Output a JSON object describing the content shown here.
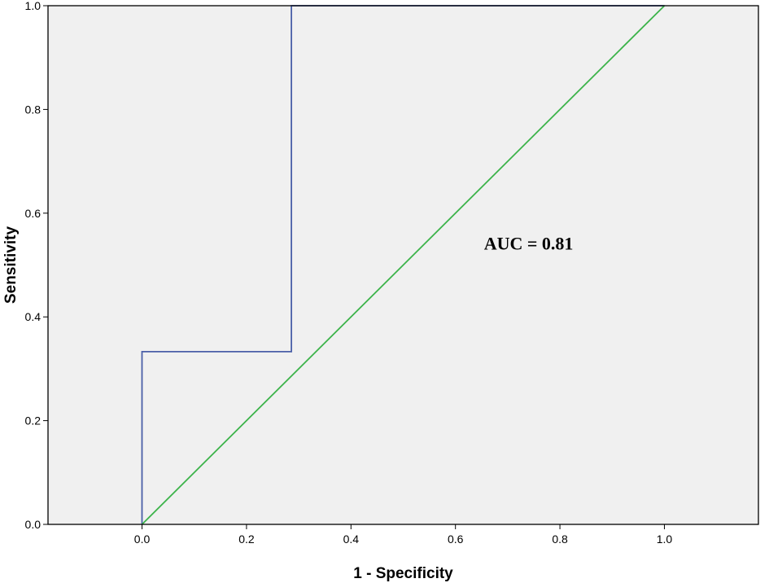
{
  "chart_data": {
    "type": "line",
    "title": "",
    "xlabel": "1 - Specificity",
    "ylabel": "Sensitivity",
    "xlim": [
      -0.18,
      1.18
    ],
    "ylim": [
      0.0,
      1.0
    ],
    "x_ticks": [
      "0.0",
      "0.2",
      "0.4",
      "0.6",
      "0.8",
      "1.0"
    ],
    "y_ticks": [
      "0.0",
      "0.2",
      "0.4",
      "0.6",
      "0.8",
      "1.0"
    ],
    "grid": false,
    "series": [
      {
        "name": "",
        "color": "#4a5fa8",
        "points": [
          [
            0.0,
            0.0
          ],
          [
            0.0,
            0.333
          ],
          [
            0.286,
            0.333
          ],
          [
            0.286,
            1.0
          ],
          [
            1.0,
            1.0
          ]
        ]
      },
      {
        "name": "",
        "color": "#3cb34a",
        "points": [
          [
            0.0,
            0.0
          ],
          [
            1.0,
            1.0
          ]
        ]
      }
    ],
    "annotations": [
      {
        "text": "AUC = 0.81",
        "x": 0.74,
        "y": 0.53
      }
    ],
    "plot_background": "#f0f0f0"
  }
}
